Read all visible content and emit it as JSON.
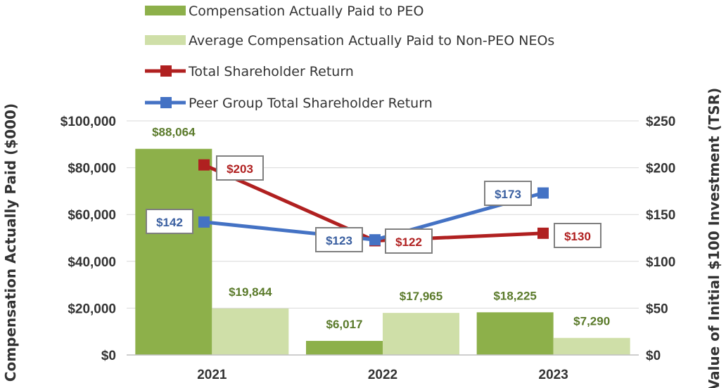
{
  "chart_data": {
    "type": "bar",
    "categories": [
      "2021",
      "2022",
      "2023"
    ],
    "series": [
      {
        "name": "Compensation Actually Paid to PEO",
        "kind": "bar",
        "axis": "left",
        "values": [
          88064,
          6017,
          18225
        ],
        "labels": [
          "$88,064",
          "$6,017",
          "$18,225"
        ],
        "color": "#8db04a",
        "label_color": "#5a7a2a"
      },
      {
        "name": "Average Compensation Actually Paid to Non-PEO NEOs",
        "kind": "bar",
        "axis": "left",
        "values": [
          19844,
          17965,
          7290
        ],
        "labels": [
          "$19,844",
          "$17,965",
          "$7,290"
        ],
        "color": "#cfdfa8",
        "label_color": "#5a7a2a"
      },
      {
        "name": "Total Shareholder Return",
        "kind": "line",
        "axis": "right",
        "values": [
          203,
          122,
          130
        ],
        "labels": [
          "$203",
          "$122",
          "$130"
        ],
        "color": "#b02020",
        "label_color": "#b02020"
      },
      {
        "name": "Peer Group Total Shareholder Return",
        "kind": "line",
        "axis": "right",
        "values": [
          142,
          123,
          173
        ],
        "labels": [
          "$142",
          "$123",
          "$173"
        ],
        "color": "#4472c4",
        "label_color": "#3a5fa0"
      }
    ],
    "ylabel": "Compensation Actually Paid ($000)",
    "y2label": "Value of Initial $100 Investment (TSR)",
    "ylim": [
      0,
      100000
    ],
    "y2lim": [
      0,
      250
    ],
    "yticks": [
      "$0",
      "$20,000",
      "$40,000",
      "$60,000",
      "$80,000",
      "$100,000"
    ],
    "y2ticks": [
      "$0",
      "$50",
      "$100",
      "$150",
      "$200",
      "$250"
    ],
    "grid": true,
    "legend_position": "top"
  }
}
